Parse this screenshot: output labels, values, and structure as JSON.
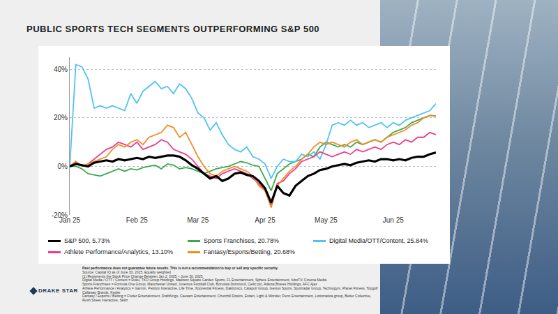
{
  "chart_data": {
    "type": "line",
    "title": "PUBLIC SPORTS TECH SEGMENTS OUTPERFORMING S&P 500",
    "categories": [
      "Jan 25",
      null,
      null,
      null,
      null,
      null,
      null,
      null,
      null,
      null,
      null,
      "Feb 25",
      null,
      null,
      null,
      null,
      null,
      null,
      null,
      null,
      null,
      "Mar 25",
      null,
      null,
      null,
      null,
      null,
      null,
      null,
      null,
      null,
      null,
      "Apr 25",
      null,
      null,
      null,
      null,
      null,
      null,
      null,
      null,
      null,
      "May 25",
      null,
      null,
      null,
      null,
      null,
      null,
      null,
      null,
      null,
      null,
      "Jun 25",
      null,
      null,
      null,
      null,
      null,
      null,
      null
    ],
    "series": [
      {
        "name": "S&P 500, 5.73%",
        "color": "#000000",
        "values": [
          0,
          1,
          0.5,
          0,
          1.5,
          2,
          2.5,
          2,
          3,
          2.5,
          3,
          3.5,
          3,
          4,
          3.5,
          4,
          4.5,
          4.5,
          4,
          2.5,
          0.5,
          -1,
          -3,
          -5,
          -4,
          -6,
          -5,
          -3,
          -2.5,
          -3.5,
          -4,
          -6,
          -9,
          -15,
          -8,
          -11,
          -12,
          -8,
          -6,
          -4,
          -3,
          -1.5,
          -1,
          0,
          0.5,
          1,
          0.5,
          1.5,
          2,
          2.5,
          2,
          3,
          3,
          2.5,
          3,
          2.5,
          3.5,
          4,
          4,
          5,
          5.73
        ]
      },
      {
        "name": "Sports Franchises, 20.78%",
        "color": "#3aaa4a",
        "values": [
          0,
          0,
          -1,
          -3,
          -3.5,
          -4,
          -3,
          -2,
          -1,
          -2,
          -1,
          -1.5,
          -0.5,
          0,
          0.5,
          -1,
          1,
          0.5,
          -1,
          -0.5,
          -1,
          -2,
          -3,
          -2,
          -1,
          -0.5,
          0,
          1,
          2,
          1.5,
          0.5,
          0,
          -5,
          -10,
          -3,
          -1,
          1,
          2,
          3,
          5,
          4,
          8,
          10,
          9,
          8,
          9,
          8,
          10,
          9,
          10,
          11,
          10,
          12,
          14,
          15,
          16,
          18,
          19,
          20,
          21,
          20.78
        ]
      },
      {
        "name": "Digital Media/OTT/Content, 25.84%",
        "color": "#4fc3f7",
        "values": [
          0,
          42,
          41,
          36,
          24,
          25,
          24,
          25,
          24,
          23,
          30,
          26,
          31,
          33,
          35,
          32,
          33,
          30,
          34,
          32,
          28,
          22,
          20,
          15,
          18,
          13,
          9,
          7,
          6,
          8,
          4,
          3,
          1,
          -5,
          0,
          3,
          2,
          2,
          5,
          4,
          6,
          3,
          9,
          17,
          18,
          17,
          19,
          17,
          18,
          16,
          17,
          18,
          16,
          18,
          17,
          19,
          20,
          21,
          22,
          23,
          25.84
        ]
      },
      {
        "name": "Athlete Performance/Analytics, 13.10%",
        "color": "#ec3d8f",
        "values": [
          0,
          2,
          0,
          1,
          3,
          5,
          7,
          8,
          10,
          9,
          8,
          10,
          7,
          8,
          9,
          11,
          10,
          7,
          6,
          5,
          3,
          0,
          -3,
          -4,
          -5,
          -3,
          -2,
          -1,
          -2,
          -3,
          -5,
          -7,
          -10,
          -16,
          -7,
          -6,
          -3,
          -1,
          2,
          3,
          4,
          6,
          5,
          4,
          5,
          6,
          5,
          7,
          6,
          7,
          8,
          7,
          9,
          10,
          9,
          11,
          10,
          12,
          12,
          14,
          13.1
        ]
      },
      {
        "name": "Fantasy/Esports/Betting, 20.68%",
        "color": "#f28c28",
        "values": [
          0,
          2,
          0,
          1,
          2,
          3,
          4,
          7,
          9,
          8,
          10,
          11,
          9,
          12,
          13,
          14,
          17,
          16,
          12,
          14,
          9,
          4,
          0,
          -3,
          -4,
          -2,
          -1,
          0,
          -1,
          -2,
          -4,
          -8,
          -10,
          -17,
          -8,
          -5,
          -2,
          0,
          3,
          5,
          8,
          10,
          9,
          10,
          9,
          8,
          10,
          11,
          9,
          10,
          11,
          10,
          12,
          13,
          14,
          15,
          17,
          18,
          20,
          21,
          20.68
        ]
      }
    ],
    "ylim": [
      -20,
      45
    ],
    "yticks": [
      {
        "value": -20,
        "label": "-20%"
      },
      {
        "value": 0,
        "label": "0%"
      },
      {
        "value": 20,
        "label": "20%"
      },
      {
        "value": 40,
        "label": "40%"
      }
    ],
    "grid": true,
    "legend": "bottom"
  },
  "footnotes": {
    "disclaimer": "Past performance does not guarantee future results. This is not a recommendation to buy or sell any specific security.",
    "lines": [
      "Source: Capital IQ as of June 30, 2025. Equally weighted",
      "(1) Represents the Stock Price Change Between Jan 2, 2025 – June 30, 2025",
      "Digital Media / OTT / Content = Roku, TKO Group Holdings, Madison Square Garden Sports, FL Entertainment, Sphere Entertainment, fuboTV, Cinema Media",
      "Sports Franchises = Formula One Group, Manchester United, Juventus Football Club, Borussia Dortmund, Celtic plc, Atlanta Braves Holdings, AFC Ajax",
      "Athlete Performance / Analytics = Garmin, Peloton Interactive, Life Time, Xponential Fitness, Daktronics, Catapult Group, Genius Sports, Sportradar Group, Technogym, Planet Fitness, Topgolf Callaway Brands, Kepler",
      "Fantasy / Esports / Betting = Flutter Entertainment, DraftKings, Caesars Entertainment, Churchill Downs, Entain, Light & Wonder, Penn Entertainment, Lottomatica group, Better Collective, Rush Street Interactive, Skillz"
    ]
  },
  "logo": "DRAKE STAR"
}
